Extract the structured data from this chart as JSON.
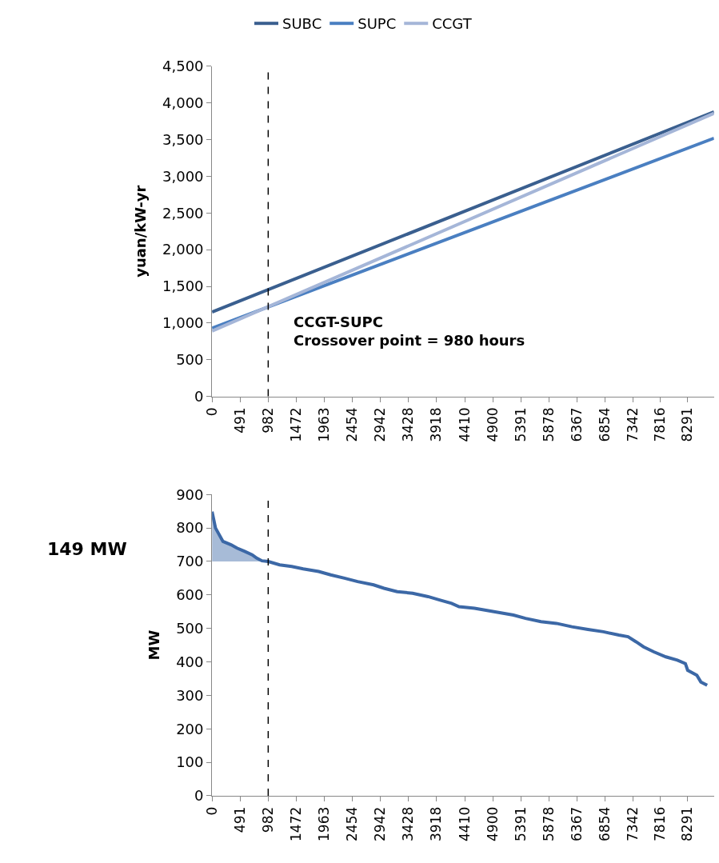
{
  "chart_data": [
    {
      "type": "line",
      "ylabel": "yuan/kW-yr",
      "xlim": [
        0,
        8760
      ],
      "xticks": [
        0,
        491,
        982,
        1472,
        1963,
        2454,
        2942,
        3428,
        3918,
        4410,
        4900,
        5391,
        5878,
        6367,
        6854,
        7342,
        7816,
        8291
      ],
      "ylim": [
        0,
        4500
      ],
      "yticks": [
        {
          "value": 0,
          "label": "0"
        },
        {
          "value": 500,
          "label": "500"
        },
        {
          "value": 1000,
          "label": "1,000"
        },
        {
          "value": 1500,
          "label": "1,500"
        },
        {
          "value": 2000,
          "label": "2,000"
        },
        {
          "value": 2500,
          "label": "2,500"
        },
        {
          "value": 3000,
          "label": "3,000"
        },
        {
          "value": 3500,
          "label": "3,500"
        },
        {
          "value": 4000,
          "label": "4,000"
        },
        {
          "value": 4500,
          "label": "4,500"
        }
      ],
      "legend": "top",
      "marker": "none",
      "series": [
        {
          "name": "SUBC",
          "color": "#3a5f8f",
          "x": [
            0,
            8760
          ],
          "values": [
            1150,
            3880
          ]
        },
        {
          "name": "SUPC",
          "color": "#4a7fc1",
          "x": [
            0,
            8760
          ],
          "values": [
            930,
            3520
          ]
        },
        {
          "name": "CCGT",
          "color": "#a5b6d8",
          "x": [
            0,
            8760
          ],
          "values": [
            890,
            3860
          ]
        }
      ],
      "ref_lines": [
        {
          "axis": "x",
          "value": 980,
          "label": null,
          "color": "#000000",
          "line_style": "dashed"
        }
      ],
      "annotations": [
        {
          "text": "CCGT-SUPC\nCrossover point = 980 hours",
          "x": 980,
          "y": 1210
        }
      ]
    },
    {
      "type": "line",
      "ylabel": "MW",
      "xlim": [
        0,
        8760
      ],
      "xticks": [
        0,
        491,
        982,
        1472,
        1963,
        2454,
        2942,
        3428,
        3918,
        4410,
        4900,
        5391,
        5878,
        6367,
        6854,
        7342,
        7816,
        8291
      ],
      "ylim": [
        0,
        900
      ],
      "yticks": [
        0,
        100,
        200,
        300,
        400,
        500,
        600,
        700,
        800,
        900
      ],
      "marker": "none",
      "series": [
        {
          "color": "#3c68a6",
          "x": [
            0,
            60,
            190,
            330,
            435,
            570,
            700,
            780,
            870,
            980,
            1180,
            1390,
            1590,
            1860,
            2070,
            2310,
            2540,
            2820,
            3000,
            3230,
            3500,
            3770,
            3970,
            4180,
            4310,
            4580,
            4920,
            5260,
            5470,
            5740,
            6010,
            6280,
            6560,
            6830,
            7100,
            7260,
            7400,
            7530,
            7710,
            7920,
            8120,
            8260,
            8300,
            8460,
            8530,
            8640
          ],
          "values": [
            849,
            800,
            760,
            750,
            740,
            730,
            720,
            710,
            702,
            700,
            690,
            685,
            678,
            670,
            660,
            650,
            640,
            630,
            620,
            610,
            605,
            595,
            585,
            575,
            565,
            560,
            550,
            540,
            530,
            520,
            515,
            505,
            497,
            490,
            480,
            475,
            460,
            445,
            430,
            415,
            405,
            395,
            375,
            360,
            340,
            330
          ],
          "lower": [
            700,
            700,
            700,
            700,
            700,
            700,
            700,
            700,
            700,
            700,
            null,
            null,
            null,
            null,
            null,
            null,
            null,
            null,
            null,
            null,
            null,
            null,
            null,
            null,
            null,
            null,
            null,
            null,
            null,
            null,
            null,
            null,
            null,
            null,
            null,
            null,
            null,
            null,
            null,
            null,
            null,
            null,
            null,
            null,
            null,
            null
          ],
          "upper": [
            849,
            800,
            760,
            750,
            740,
            730,
            720,
            710,
            702,
            700,
            null,
            null,
            null,
            null,
            null,
            null,
            null,
            null,
            null,
            null,
            null,
            null,
            null,
            null,
            null,
            null,
            null,
            null,
            null,
            null,
            null,
            null,
            null,
            null,
            null,
            null,
            null,
            null,
            null,
            null,
            null,
            null,
            null,
            null,
            null,
            null
          ]
        }
      ],
      "ref_lines": [
        {
          "axis": "x",
          "value": 980,
          "label": null,
          "color": "#000000",
          "line_style": "dashed"
        }
      ],
      "annotations": [
        "149 MW"
      ]
    }
  ]
}
